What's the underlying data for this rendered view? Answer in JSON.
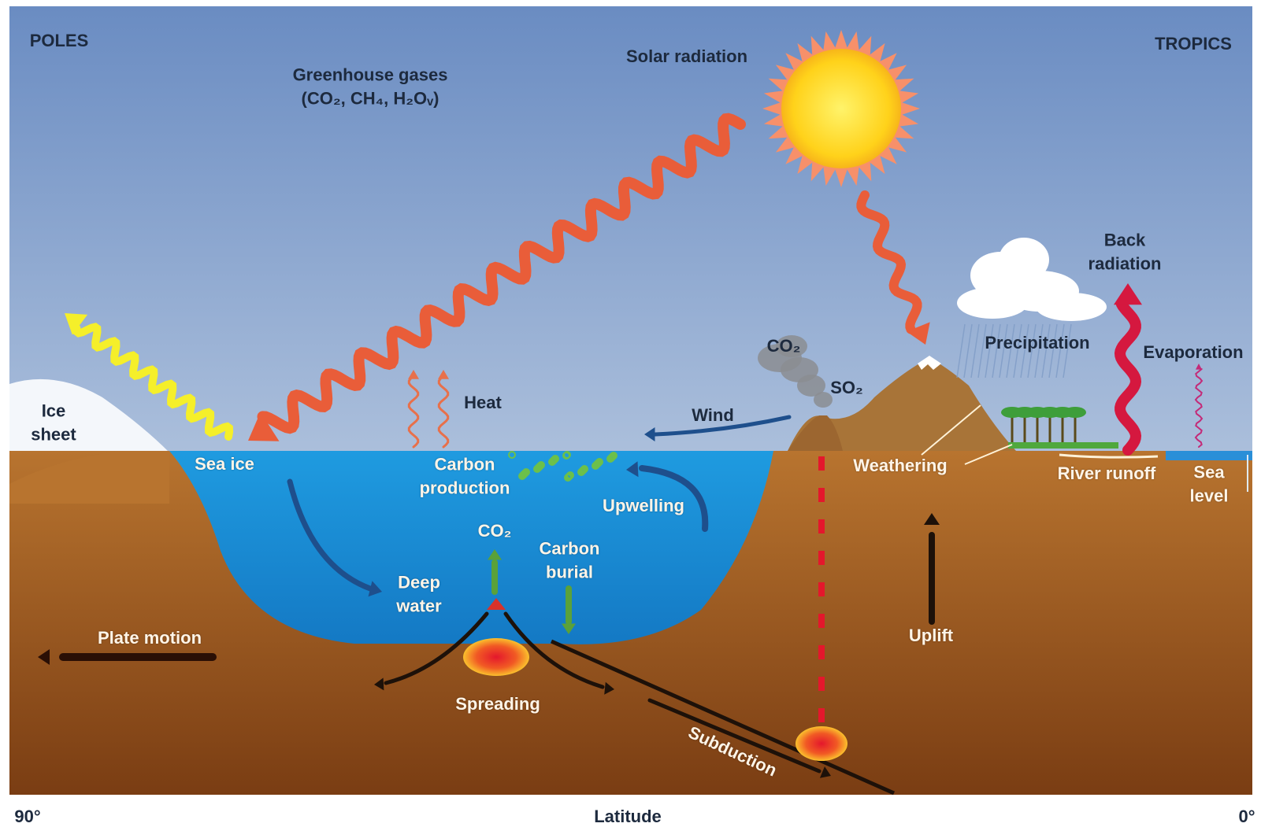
{
  "header": {
    "left": "POLES",
    "right": "TROPICS"
  },
  "labels": [
    "Solar radiation",
    "Greenhouse gases\n(CO₂, CH₄, H₂Oᵥ)",
    "Ice\nsheet",
    "Sea ice",
    "Heat",
    "Wind",
    "CO₂",
    "SO₂",
    "Back\nradiation",
    "Precipitation",
    "Evaporation",
    "Carbon\nproduction",
    "Upwelling",
    "CO₂",
    "Carbon\nburial",
    "Deep\nwater",
    "Weathering",
    "River runoff",
    "Sea\nlevel",
    "Plate motion",
    "Spreading",
    "Uplift",
    "Subduction"
  ],
  "axis": {
    "left": "90°",
    "title": "Latitude",
    "right": "0°"
  }
}
